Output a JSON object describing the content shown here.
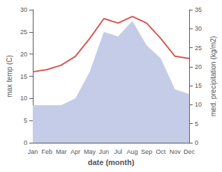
{
  "chart_data": {
    "type": "line",
    "xlabel": "date (month)",
    "ylabel": "max temp (C)",
    "y2label": "med. precipitation (kg/m2)",
    "categories": [
      "Jan",
      "Feb",
      "Mar",
      "Apr",
      "May",
      "Jun",
      "Jul",
      "Aug",
      "Sep",
      "Oct",
      "Nov",
      "Dec"
    ],
    "series": [
      {
        "type": "area",
        "color": "#c5cce8",
        "values": [
          8.5,
          8.5,
          8.5,
          10.0,
          16.0,
          25.0,
          24.0,
          27.5,
          22.0,
          19.0,
          12.0,
          11.0
        ]
      },
      {
        "type": "line",
        "color": "#d9534f",
        "values": [
          16.0,
          16.5,
          17.5,
          19.5,
          23.5,
          28.0,
          27.0,
          28.5,
          27.0,
          23.5,
          19.5,
          19.0
        ]
      }
    ],
    "ylim": [
      0,
      30
    ],
    "yticks": [
      0,
      5,
      10,
      15,
      20,
      25,
      30
    ],
    "y2lim": [
      0,
      35
    ],
    "y2ticks": [
      0,
      5,
      10,
      15,
      20,
      25,
      30,
      35
    ],
    "grid": false
  }
}
